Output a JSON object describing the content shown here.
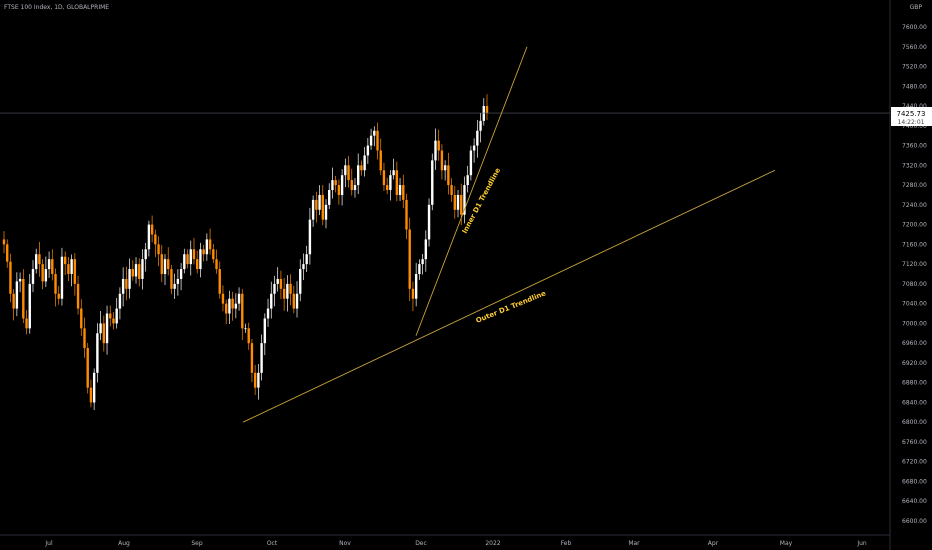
{
  "header": {
    "title": "FTSE 100 Index, 1D, GLOBALPRIME",
    "currency": "GBP"
  },
  "price_label": {
    "value": "7425.73",
    "countdown": "14:22:01"
  },
  "colors": {
    "background": "#000000",
    "up": "#ffffff",
    "down": "#ff8c00",
    "trendline": "#c8a43a",
    "annotation": "#ffcc33",
    "axis_text": "#b2b5be"
  },
  "chart_data": {
    "type": "candlestick",
    "title": "FTSE 100 Index, 1D, GLOBALPRIME",
    "y_ticks": [
      7600,
      7560,
      7520,
      7480,
      7440,
      7400,
      7360,
      7320,
      7280,
      7240,
      7200,
      7160,
      7120,
      7080,
      7040,
      7000,
      6960,
      6920,
      6880,
      6840,
      6800,
      6760,
      6720,
      6680,
      6640,
      6600
    ],
    "y_tick_labels": [
      "7600.00",
      "7560.00",
      "7520.00",
      "7480.00",
      "7440.00",
      "7400.00",
      "7360.00",
      "7320.00",
      "7280.00",
      "7240.00",
      "7200.00",
      "7160.00",
      "7120.00",
      "7080.00",
      "7040.00",
      "7000.00",
      "6960.00",
      "6920.00",
      "6880.00",
      "6840.00",
      "6800.00",
      "6760.00",
      "6720.00",
      "6680.00",
      "6640.00",
      "6600.00"
    ],
    "ylim": [
      6580,
      7640
    ],
    "x_labels": [
      "Jul",
      "Aug",
      "Sep",
      "Oct",
      "Nov",
      "Dec",
      "2022",
      "Feb",
      "Mar",
      "Apr",
      "May",
      "Jun"
    ],
    "current_price": 7425.73,
    "candles_close": [
      7160,
      7125,
      7060,
      7030,
      7085,
      7090,
      7010,
      6990,
      7080,
      7110,
      7140,
      7120,
      7085,
      7110,
      7130,
      7100,
      7060,
      7050,
      7135,
      7120,
      7100,
      7130,
      7080,
      7030,
      6990,
      6950,
      6870,
      6840,
      6900,
      6980,
      7000,
      6960,
      7020,
      7010,
      7000,
      7030,
      7060,
      7090,
      7070,
      7110,
      7095,
      7120,
      7090,
      7130,
      7150,
      7200,
      7180,
      7160,
      7140,
      7100,
      7130,
      7110,
      7070,
      7080,
      7090,
      7110,
      7140,
      7120,
      7150,
      7130,
      7110,
      7150,
      7140,
      7170,
      7150,
      7130,
      7110,
      7060,
      7040,
      7020,
      7050,
      7030,
      7040,
      7060,
      6990,
      6990,
      6960,
      6900,
      6870,
      6900,
      6960,
      7010,
      7030,
      7060,
      7080,
      7090,
      7070,
      7050,
      7080,
      7060,
      7030,
      7060,
      7110,
      7120,
      7140,
      7210,
      7250,
      7230,
      7260,
      7210,
      7240,
      7270,
      7290,
      7280,
      7260,
      7300,
      7320,
      7290,
      7270,
      7280,
      7320,
      7310,
      7340,
      7360,
      7380,
      7390,
      7350,
      7310,
      7280,
      7270,
      7300,
      7310,
      7260,
      7280,
      7250,
      7190,
      7070,
      7050,
      7100,
      7120,
      7130,
      7170,
      7240,
      7330,
      7370,
      7350,
      7310,
      7320,
      7280,
      7260,
      7230,
      7260,
      7220,
      7280,
      7300,
      7350,
      7360,
      7390,
      7410,
      7440,
      7425.73
    ],
    "trendlines": [
      {
        "name": "Outer D1 Trendline",
        "from": [
          "2021-09-17",
          6800
        ],
        "to": [
          "2022-05-06",
          7310
        ]
      },
      {
        "name": "Inner D1 Trendline",
        "from": [
          "2021-11-30",
          6975
        ],
        "to": [
          "2022-01-14",
          7560
        ]
      }
    ],
    "annotations": [
      {
        "text": "Inner D1 Trendline"
      },
      {
        "text": "Outer D1 Trendline"
      }
    ],
    "horizontal_line": 7425.73,
    "grid": false
  }
}
